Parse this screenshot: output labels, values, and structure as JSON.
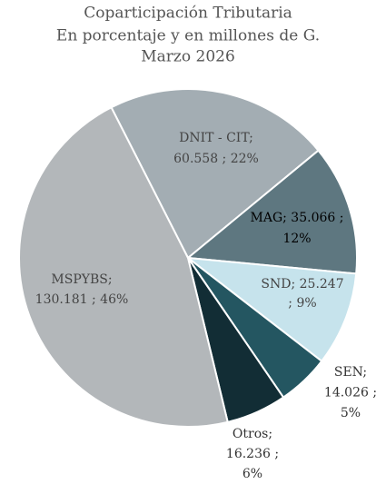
{
  "chart_data": {
    "type": "pie",
    "title": [
      "Coparticipación Tributaria",
      "En porcentaje y en millones de G.",
      "Marzo 2026"
    ],
    "values": [
      60558,
      35066,
      25247,
      14026,
      16236,
      130181
    ],
    "value_labels": [
      [
        "DNIT - CIT;",
        "60.558 ; 22%"
      ],
      [
        "MAG;  35.066 ;",
        "12%"
      ],
      [
        "SND;  25.247",
        "; 9%"
      ],
      [
        "SEN;",
        "14.026 ;",
        "5%"
      ],
      [
        "Otros;",
        "16.236 ;",
        "6%"
      ],
      [
        "MSPYBS;",
        "130.181 ; 46%"
      ]
    ],
    "colors": [
      "#a3adb3",
      "#5e7780",
      "#c6e3ec",
      "#245661",
      "#122d35",
      "#b3b7ba"
    ],
    "start_angle": -27
  }
}
